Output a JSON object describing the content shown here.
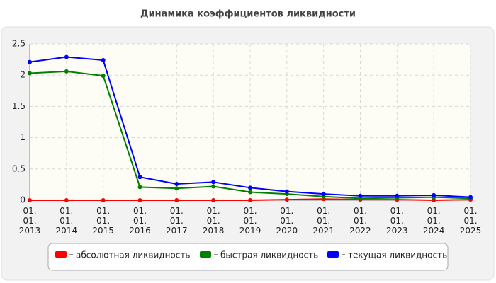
{
  "chart_data": {
    "type": "line",
    "title": "Динамика коэффициентов ликвидности",
    "categories": [
      "01.01.2013",
      "01.01.2014",
      "01.01.2015",
      "01.01.2016",
      "01.01.2017",
      "01.01.2018",
      "01.01.2019",
      "01.01.2020",
      "01.01.2021",
      "01.01.2022",
      "01.01.2023",
      "01.01.2024",
      "01.01.2025"
    ],
    "series": [
      {
        "name": "абсолютная ликвидность",
        "color": "#ff0000",
        "values": [
          0,
          0,
          0,
          0,
          0,
          0,
          0,
          0.01,
          0.02,
          0.01,
          0.01,
          0,
          0.01
        ]
      },
      {
        "name": "быстрая ликвидность",
        "color": "#008000",
        "values": [
          2.03,
          2.06,
          1.99,
          0.21,
          0.19,
          0.22,
          0.13,
          0.1,
          0.06,
          0.03,
          0.04,
          0.05,
          0.03
        ]
      },
      {
        "name": "текущая ликвидность",
        "color": "#0000ff",
        "values": [
          2.21,
          2.29,
          2.24,
          0.37,
          0.26,
          0.29,
          0.2,
          0.14,
          0.1,
          0.07,
          0.07,
          0.08,
          0.05
        ]
      }
    ],
    "ylim": [
      0,
      2.5
    ],
    "yticks": [
      0,
      0.5,
      1,
      1.5,
      2,
      2.5
    ],
    "grid": true
  }
}
